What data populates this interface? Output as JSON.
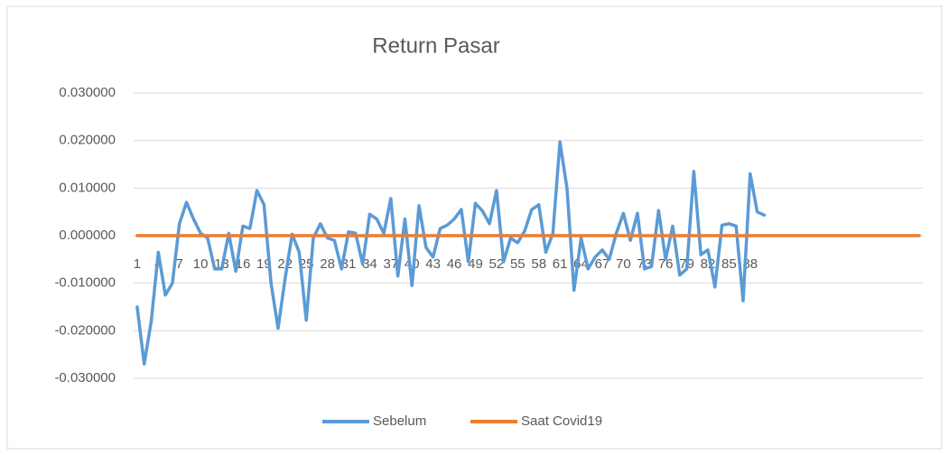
{
  "chart_data": {
    "type": "line",
    "title": "Return Pasar",
    "categories": [
      1,
      null,
      null,
      4,
      null,
      null,
      7,
      null,
      null,
      10,
      null,
      null,
      13,
      null,
      null,
      16,
      null,
      null,
      19,
      null,
      null,
      22,
      null,
      null,
      25,
      null,
      null,
      28,
      null,
      null,
      31,
      null,
      null,
      34,
      null,
      null,
      37,
      null,
      null,
      40,
      null,
      null,
      43,
      null,
      null,
      46,
      null,
      null,
      49,
      null,
      null,
      52,
      null,
      null,
      55,
      null,
      null,
      58,
      null,
      null,
      61,
      null,
      null,
      64,
      null,
      null,
      67,
      null,
      null,
      70,
      null,
      null,
      73,
      null,
      null,
      76,
      null,
      null,
      79,
      null,
      null,
      82,
      null,
      null,
      85,
      null,
      null,
      88,
      null,
      null,
      null,
      null,
      null,
      null,
      null,
      null,
      null,
      null,
      null,
      null,
      null,
      null,
      null,
      null,
      null,
      null,
      null,
      null,
      null,
      null,
      null,
      null
    ],
    "series": [
      {
        "name": "Sebelum",
        "color": "#5b9bd5",
        "values": [
          -0.015,
          -0.027,
          -0.018,
          -0.0035,
          -0.0125,
          -0.01,
          0.0025,
          0.007,
          0.0035,
          0.0005,
          -0.0005,
          -0.007,
          -0.007,
          0.0005,
          -0.0075,
          0.002,
          0.0015,
          0.0095,
          0.0065,
          -0.01,
          -0.0195,
          -0.009,
          0.0003,
          -0.0035,
          -0.0178,
          -0.0005,
          0.0025,
          -0.0005,
          -0.001,
          -0.007,
          0.0008,
          0.0005,
          -0.006,
          0.0045,
          0.0035,
          0.0005,
          0.0078,
          -0.0085,
          0.0035,
          -0.0105,
          0.0063,
          -0.0025,
          -0.0045,
          0.0015,
          0.0022,
          0.0035,
          0.0055,
          -0.0055,
          0.0068,
          0.0052,
          0.0025,
          0.0095,
          -0.0055,
          -0.0005,
          -0.0015,
          0.001,
          0.0055,
          0.0065,
          -0.0035,
          0.0005,
          0.0197,
          0.01,
          -0.0115,
          -0.0005,
          -0.007,
          -0.0045,
          -0.003,
          -0.005,
          0.0005,
          0.0047,
          -0.001,
          0.0047,
          -0.007,
          -0.0065,
          0.0053,
          -0.005,
          0.002,
          -0.0083,
          -0.007,
          0.0135,
          -0.004,
          -0.003,
          -0.0108,
          0.0022,
          0.0025,
          0.002,
          -0.0137,
          0.013,
          0.005,
          0.0043,
          null,
          null,
          null,
          null,
          null,
          null,
          null,
          null,
          null,
          null,
          null,
          null,
          null,
          null,
          null,
          null,
          null,
          null,
          null,
          null,
          null,
          null
        ]
      },
      {
        "name": "Saat Covid19",
        "color": "#ed7d31",
        "values": [
          0,
          0,
          0,
          0,
          0,
          0,
          0,
          0,
          0,
          0,
          0,
          0,
          0,
          0,
          0,
          0,
          0,
          0,
          0,
          0,
          0,
          0,
          0,
          0,
          0,
          0,
          0,
          0,
          0,
          0,
          0,
          0,
          0,
          0,
          0,
          0,
          0,
          0,
          0,
          0,
          0,
          0,
          0,
          0,
          0,
          0,
          0,
          0,
          0,
          0,
          0,
          0,
          0,
          0,
          0,
          0,
          0,
          0,
          0,
          0,
          0,
          0,
          0,
          0,
          0,
          0,
          0,
          0,
          0,
          0,
          0,
          0,
          0,
          0,
          0,
          0,
          0,
          0,
          0,
          0,
          0,
          0,
          0,
          0,
          0,
          0,
          0,
          0,
          0,
          0,
          0,
          0,
          0,
          0,
          0,
          0,
          0,
          0,
          0,
          0,
          0,
          0,
          0,
          0,
          0,
          0,
          0,
          0,
          0,
          0,
          0,
          0
        ]
      }
    ],
    "ylim": [
      -0.03,
      0.03
    ],
    "yticks": [
      {
        "value": -0.03,
        "label": "-0.030000"
      },
      {
        "value": -0.02,
        "label": "-0.020000"
      },
      {
        "value": -0.01,
        "label": "-0.010000"
      },
      {
        "value": 0,
        "label": "0.000000"
      },
      {
        "value": 0.01,
        "label": "0.010000"
      },
      {
        "value": 0.02,
        "label": "0.020000"
      },
      {
        "value": 0.03,
        "label": "0.030000"
      }
    ],
    "grid": true,
    "legend": "bottom"
  }
}
